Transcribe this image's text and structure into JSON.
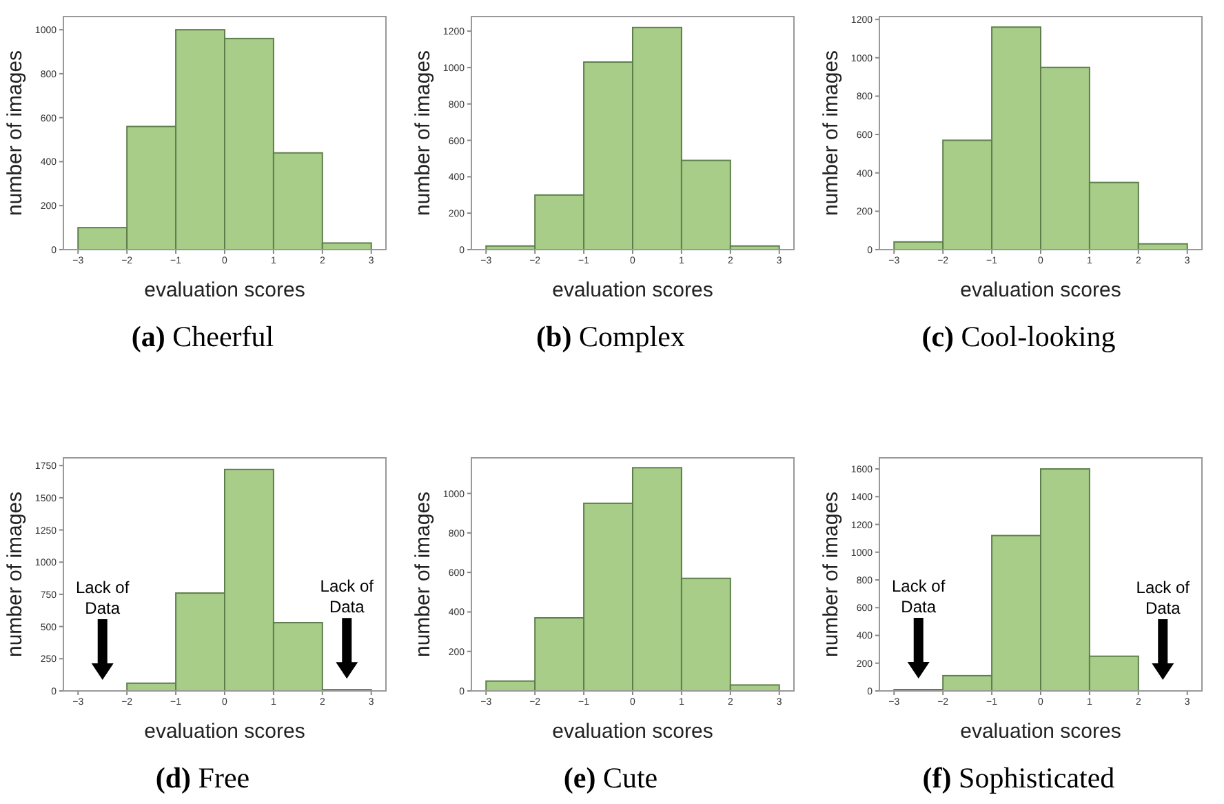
{
  "chart_data": [
    {
      "type": "histogram",
      "title": "(a) Cheerful",
      "xlabel": "evaluation scores",
      "ylabel": "number of images",
      "bins": [
        -3,
        -2,
        -1,
        0,
        1,
        2,
        3
      ],
      "values": [
        100,
        560,
        1000,
        960,
        440,
        30
      ],
      "color": "#a8cd88",
      "xlim": [
        -3.3,
        3.3
      ],
      "xticks": [
        {
          "value": -3,
          "label": "−3"
        },
        {
          "value": -2,
          "label": "−2"
        },
        {
          "value": -1,
          "label": "−1"
        },
        0,
        1,
        2,
        3
      ],
      "ylim": [
        0,
        1060
      ],
      "yticks": [
        0,
        200,
        400,
        600,
        800,
        1000
      ]
    },
    {
      "type": "histogram",
      "title": "(b) Complex",
      "xlabel": "evaluation scores",
      "ylabel": "number of images",
      "bins": [
        -3,
        -2,
        -1,
        0,
        1,
        2,
        3
      ],
      "values": [
        20,
        300,
        1030,
        1220,
        490,
        20
      ],
      "color": "#a8cd88",
      "xlim": [
        -3.3,
        3.3
      ],
      "xticks": [
        {
          "value": -3,
          "label": "−3"
        },
        {
          "value": -2,
          "label": "−2"
        },
        {
          "value": -1,
          "label": "−1"
        },
        0,
        1,
        2,
        3
      ],
      "ylim": [
        0,
        1280
      ],
      "yticks": [
        0,
        200,
        400,
        600,
        800,
        1000,
        1200
      ]
    },
    {
      "type": "histogram",
      "title": "(c) Cool-looking",
      "xlabel": "evaluation scores",
      "ylabel": "number of images",
      "bins": [
        -3,
        -2,
        -1,
        0,
        1,
        2,
        3
      ],
      "values": [
        40,
        570,
        1160,
        950,
        350,
        30
      ],
      "color": "#a8cd88",
      "xlim": [
        -3.3,
        3.3
      ],
      "xticks": [
        {
          "value": -3,
          "label": "−3"
        },
        {
          "value": -2,
          "label": "−2"
        },
        {
          "value": -1,
          "label": "−1"
        },
        0,
        1,
        2,
        3
      ],
      "ylim": [
        0,
        1215
      ],
      "yticks": [
        0,
        200,
        400,
        600,
        800,
        1000,
        1200
      ]
    },
    {
      "type": "histogram",
      "title": "(d) Free",
      "xlabel": "evaluation scores",
      "ylabel": "number of images",
      "bins": [
        -3,
        -2,
        -1,
        0,
        1,
        2,
        3
      ],
      "values": [
        0,
        60,
        760,
        1720,
        530,
        10
      ],
      "color": "#a8cd88",
      "xlim": [
        -3.3,
        3.3
      ],
      "xticks": [
        {
          "value": -3,
          "label": "−3"
        },
        {
          "value": -2,
          "label": "−2"
        },
        {
          "value": -1,
          "label": "−1"
        },
        0,
        1,
        2,
        3
      ],
      "ylim": [
        0,
        1810
      ],
      "yticks": [
        0,
        250,
        500,
        750,
        1000,
        1250,
        1500,
        1750
      ],
      "annotations": [
        "Lack of Data",
        "Lack of Data"
      ]
    },
    {
      "type": "histogram",
      "title": "(e) Cute",
      "xlabel": "evaluation scores",
      "ylabel": "number of images",
      "bins": [
        -3,
        -2,
        -1,
        0,
        1,
        2,
        3
      ],
      "values": [
        50,
        370,
        950,
        1130,
        570,
        30
      ],
      "color": "#a8cd88",
      "xlim": [
        -3.3,
        3.3
      ],
      "xticks": [
        {
          "value": -3,
          "label": "−3"
        },
        {
          "value": -2,
          "label": "−2"
        },
        {
          "value": -1,
          "label": "−1"
        },
        0,
        1,
        2,
        3
      ],
      "ylim": [
        0,
        1180
      ],
      "yticks": [
        0,
        200,
        400,
        600,
        800,
        1000
      ]
    },
    {
      "type": "histogram",
      "title": "(f) Sophisticated",
      "xlabel": "evaluation scores",
      "ylabel": "number of images",
      "bins": [
        -3,
        -2,
        -1,
        0,
        1,
        2,
        3
      ],
      "values": [
        10,
        110,
        1120,
        1600,
        250,
        0
      ],
      "color": "#a8cd88",
      "xlim": [
        -3.3,
        3.3
      ],
      "xticks": [
        {
          "value": -3,
          "label": "−3"
        },
        {
          "value": -2,
          "label": "−2"
        },
        {
          "value": -1,
          "label": "−1"
        },
        0,
        1,
        2,
        3
      ],
      "ylim": [
        0,
        1680
      ],
      "yticks": [
        0,
        200,
        400,
        600,
        800,
        1000,
        1200,
        1400,
        1600
      ],
      "annotations": [
        "Lack of Data",
        "Lack of Data"
      ]
    }
  ]
}
